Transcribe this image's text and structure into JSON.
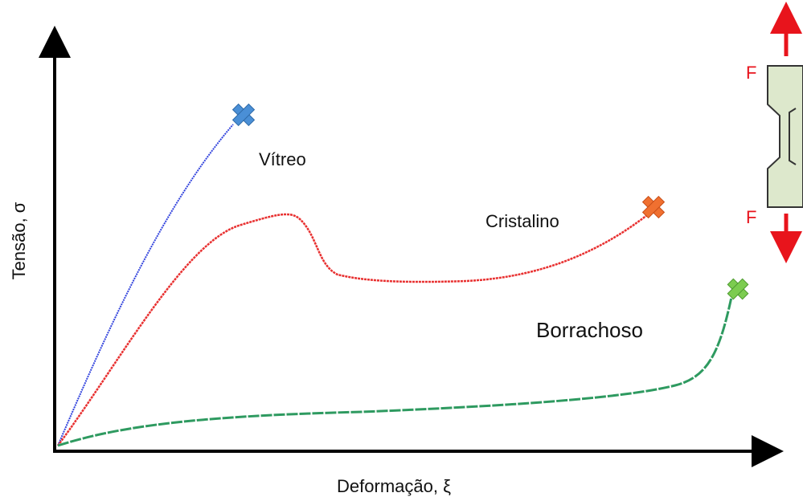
{
  "axes": {
    "y_label": "Tensão, σ",
    "x_label": "Deformação, ξ"
  },
  "curves": [
    {
      "label": "Vítreo"
    },
    {
      "label": "Cristalino"
    },
    {
      "label": "Borrachoso"
    }
  ],
  "specimen": {
    "force_top": "F",
    "force_bottom": "F"
  }
}
